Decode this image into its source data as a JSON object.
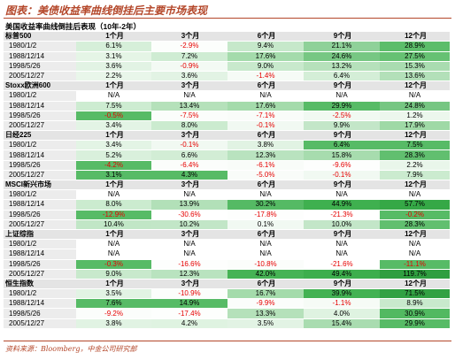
{
  "figure_title": "图表：美债收益率曲线倒挂后主要市场表现",
  "table_title": "美国收益率曲线倒挂后表现（10年-2年）",
  "horizons": [
    "1个月",
    "3个月",
    "6个月",
    "9个月",
    "12个月"
  ],
  "sections": [
    {
      "name": "标普500",
      "rows": [
        {
          "date": "1980/1/2",
          "cells": [
            {
              "v": "6.1%",
              "bg": "#d6efd9"
            },
            {
              "v": "-2.9%",
              "bg": "#fcfefc"
            },
            {
              "v": "9.4%",
              "bg": "#c6e8ca"
            },
            {
              "v": "21.1%",
              "bg": "#8fd199"
            },
            {
              "v": "28.9%",
              "bg": "#5cbd6a"
            }
          ]
        },
        {
          "date": "1988/12/14",
          "cells": [
            {
              "v": "3.1%",
              "bg": "#e5f5e6"
            },
            {
              "v": "7.2%",
              "bg": "#cfecd3"
            },
            {
              "v": "17.6%",
              "bg": "#a4dbab"
            },
            {
              "v": "24.6%",
              "bg": "#77c783"
            },
            {
              "v": "27.5%",
              "bg": "#66c173"
            }
          ]
        },
        {
          "date": "1998/5/26",
          "cells": [
            {
              "v": "3.6%",
              "bg": "#e2f3e4"
            },
            {
              "v": "-0.9%",
              "bg": "#f3faf4"
            },
            {
              "v": "9.0%",
              "bg": "#c8e9cc"
            },
            {
              "v": "13.2%",
              "bg": "#b6e1bb"
            },
            {
              "v": "15.3%",
              "bg": "#a9dcb0"
            }
          ]
        },
        {
          "date": "2005/12/27",
          "cells": [
            {
              "v": "2.2%",
              "bg": "#e9f6ea"
            },
            {
              "v": "3.6%",
              "bg": "#e2f3e4"
            },
            {
              "v": "-1.4%",
              "bg": "#f6fbf6"
            },
            {
              "v": "6.4%",
              "bg": "#d4eed7"
            },
            {
              "v": "13.6%",
              "bg": "#b3e0b9"
            }
          ]
        }
      ]
    },
    {
      "name": "Stoxx欧洲600",
      "rows": [
        {
          "date": "1980/1/2",
          "cells": [
            {
              "v": "N/A",
              "bg": "#ffffff"
            },
            {
              "v": "N/A",
              "bg": "#ffffff"
            },
            {
              "v": "N/A",
              "bg": "#ffffff"
            },
            {
              "v": "N/A",
              "bg": "#ffffff"
            },
            {
              "v": "N/A",
              "bg": "#ffffff"
            }
          ]
        },
        {
          "date": "1988/12/14",
          "cells": [
            {
              "v": "7.5%",
              "bg": "#cdecd1"
            },
            {
              "v": "13.4%",
              "bg": "#b5e1ba"
            },
            {
              "v": "17.6%",
              "bg": "#a4dbab"
            },
            {
              "v": "29.9%",
              "bg": "#57bb66"
            },
            {
              "v": "24.8%",
              "bg": "#76c682"
            }
          ]
        },
        {
          "date": "1998/5/26",
          "cells": [
            {
              "v": "-0.5%",
              "bg": "#57bb66"
            },
            {
              "v": "-7.5%",
              "bg": "#fbfdfb"
            },
            {
              "v": "-7.1%",
              "bg": "#f9fcf9"
            },
            {
              "v": "-2.5%",
              "bg": "#f1f9f2"
            },
            {
              "v": "1.2%",
              "bg": "#ecf7ed"
            }
          ]
        },
        {
          "date": "2005/12/27",
          "cells": [
            {
              "v": "3.4%",
              "bg": "#e3f4e5"
            },
            {
              "v": "8.0%",
              "bg": "#cbebcf"
            },
            {
              "v": "-0.1%",
              "bg": "#f1f9f2"
            },
            {
              "v": "9.9%",
              "bg": "#c3e6c8"
            },
            {
              "v": "17.9%",
              "bg": "#9fd9a6"
            }
          ]
        }
      ]
    },
    {
      "name": "日经225",
      "rows": [
        {
          "date": "1980/1/2",
          "cells": [
            {
              "v": "3.4%",
              "bg": "#e3f4e5"
            },
            {
              "v": "-0.1%",
              "bg": "#f1f9f2"
            },
            {
              "v": "3.8%",
              "bg": "#e1f3e3"
            },
            {
              "v": "6.4%",
              "bg": "#57bb66"
            },
            {
              "v": "7.5%",
              "bg": "#57bb66"
            }
          ]
        },
        {
          "date": "1988/12/14",
          "cells": [
            {
              "v": "5.2%",
              "bg": "#d9f0dc"
            },
            {
              "v": "6.6%",
              "bg": "#d2edd5"
            },
            {
              "v": "12.3%",
              "bg": "#b9e3bf"
            },
            {
              "v": "15.8%",
              "bg": "#a7dcae"
            },
            {
              "v": "28.3%",
              "bg": "#61bf6f"
            }
          ]
        },
        {
          "date": "1998/5/26",
          "cells": [
            {
              "v": "-4.2%",
              "bg": "#57bb66"
            },
            {
              "v": "-6.4%",
              "bg": "#fbfdfb"
            },
            {
              "v": "-6.1%",
              "bg": "#f9fcf9"
            },
            {
              "v": "-9.6%",
              "bg": "#fdfefd"
            },
            {
              "v": "2.2%",
              "bg": "#e9f6ea"
            }
          ]
        },
        {
          "date": "2005/12/27",
          "cells": [
            {
              "v": "3.1%",
              "bg": "#57bb66"
            },
            {
              "v": "4.3%",
              "bg": "#57bb66"
            },
            {
              "v": "-5.0%",
              "bg": "#f9fcf9"
            },
            {
              "v": "-0.1%",
              "bg": "#f1f9f2"
            },
            {
              "v": "7.9%",
              "bg": "#cbebcf"
            }
          ]
        }
      ]
    },
    {
      "name": "MSCI新兴市场",
      "rows": [
        {
          "date": "1980/1/2",
          "cells": [
            {
              "v": "N/A",
              "bg": "#ffffff"
            },
            {
              "v": "N/A",
              "bg": "#ffffff"
            },
            {
              "v": "N/A",
              "bg": "#ffffff"
            },
            {
              "v": "N/A",
              "bg": "#ffffff"
            },
            {
              "v": "N/A",
              "bg": "#ffffff"
            }
          ]
        },
        {
          "date": "1988/12/14",
          "cells": [
            {
              "v": "8.0%",
              "bg": "#cbebcf"
            },
            {
              "v": "13.9%",
              "bg": "#b2e0b8"
            },
            {
              "v": "30.2%",
              "bg": "#55ba64"
            },
            {
              "v": "44.9%",
              "bg": "#3fb04f"
            },
            {
              "v": "57.7%",
              "bg": "#35a846"
            }
          ]
        },
        {
          "date": "1998/5/26",
          "cells": [
            {
              "v": "-12.9%",
              "bg": "#57bb66"
            },
            {
              "v": "-30.6%",
              "bg": "#ffffff"
            },
            {
              "v": "-17.8%",
              "bg": "#fdfefd"
            },
            {
              "v": "-21.3%",
              "bg": "#ffffff"
            },
            {
              "v": "-0.2%",
              "bg": "#57bb66"
            }
          ]
        },
        {
          "date": "2005/12/27",
          "cells": [
            {
              "v": "10.4%",
              "bg": "#c1e6c6"
            },
            {
              "v": "10.2%",
              "bg": "#c2e6c7"
            },
            {
              "v": "0.1%",
              "bg": "#f1f9f2"
            },
            {
              "v": "10.0%",
              "bg": "#c3e6c8"
            },
            {
              "v": "28.3%",
              "bg": "#61bf6f"
            }
          ]
        }
      ]
    },
    {
      "name": "上证综指",
      "rows": [
        {
          "date": "1980/1/2",
          "cells": [
            {
              "v": "N/A",
              "bg": "#ffffff"
            },
            {
              "v": "N/A",
              "bg": "#ffffff"
            },
            {
              "v": "N/A",
              "bg": "#ffffff"
            },
            {
              "v": "N/A",
              "bg": "#ffffff"
            },
            {
              "v": "N/A",
              "bg": "#ffffff"
            }
          ]
        },
        {
          "date": "1988/12/14",
          "cells": [
            {
              "v": "N/A",
              "bg": "#ffffff"
            },
            {
              "v": "N/A",
              "bg": "#ffffff"
            },
            {
              "v": "N/A",
              "bg": "#ffffff"
            },
            {
              "v": "N/A",
              "bg": "#ffffff"
            },
            {
              "v": "N/A",
              "bg": "#ffffff"
            }
          ]
        },
        {
          "date": "1998/5/26",
          "cells": [
            {
              "v": "-0.3%",
              "bg": "#57bb66"
            },
            {
              "v": "-16.6%",
              "bg": "#fdfefd"
            },
            {
              "v": "-10.8%",
              "bg": "#fbfdfb"
            },
            {
              "v": "-21.6%",
              "bg": "#ffffff"
            },
            {
              "v": "-11.1%",
              "bg": "#57bb66"
            }
          ]
        },
        {
          "date": "2005/12/27",
          "cells": [
            {
              "v": "9.0%",
              "bg": "#c8e9cc"
            },
            {
              "v": "12.3%",
              "bg": "#b9e3bf"
            },
            {
              "v": "42.0%",
              "bg": "#46b355"
            },
            {
              "v": "49.4%",
              "bg": "#3dae4d"
            },
            {
              "v": "119.7%",
              "bg": "#2f9e40"
            }
          ]
        }
      ]
    },
    {
      "name": "恒生指数",
      "rows": [
        {
          "date": "1980/1/2",
          "cells": [
            {
              "v": "3.5%",
              "bg": "#e2f3e4"
            },
            {
              "v": "-10.9%",
              "bg": "#fbfdfb"
            },
            {
              "v": "16.7%",
              "bg": "#a4dbab"
            },
            {
              "v": "39.9%",
              "bg": "#43b253"
            },
            {
              "v": "71.5%",
              "bg": "#32a143"
            }
          ]
        },
        {
          "date": "1988/12/14",
          "cells": [
            {
              "v": "7.6%",
              "bg": "#57bb66"
            },
            {
              "v": "14.9%",
              "bg": "#57bb66"
            },
            {
              "v": "-9.9%",
              "bg": "#fbfdfb"
            },
            {
              "v": "-1.1%",
              "bg": "#f6fbf6"
            },
            {
              "v": "8.9%",
              "bg": "#c8e9cc"
            }
          ]
        },
        {
          "date": "1998/5/26",
          "cells": [
            {
              "v": "-9.2%",
              "bg": "#fbfdfb"
            },
            {
              "v": "-17.4%",
              "bg": "#fdfefd"
            },
            {
              "v": "13.3%",
              "bg": "#b5e1ba"
            },
            {
              "v": "4.0%",
              "bg": "#dff3e1"
            },
            {
              "v": "30.9%",
              "bg": "#52b961"
            }
          ]
        },
        {
          "date": "2005/12/27",
          "cells": [
            {
              "v": "3.8%",
              "bg": "#e1f3e3"
            },
            {
              "v": "4.2%",
              "bg": "#dff3e1"
            },
            {
              "v": "3.5%",
              "bg": "#e2f3e4"
            },
            {
              "v": "15.4%",
              "bg": "#a9dcb0"
            },
            {
              "v": "29.9%",
              "bg": "#57bb66"
            }
          ]
        }
      ]
    }
  ],
  "footer": "资料来源：Bloomberg，中金公司研究部",
  "colors": {
    "accent": "#b4472a",
    "negative": "#e60000",
    "section_bg": "#e4e4e4",
    "date_bg": "#ececec"
  }
}
